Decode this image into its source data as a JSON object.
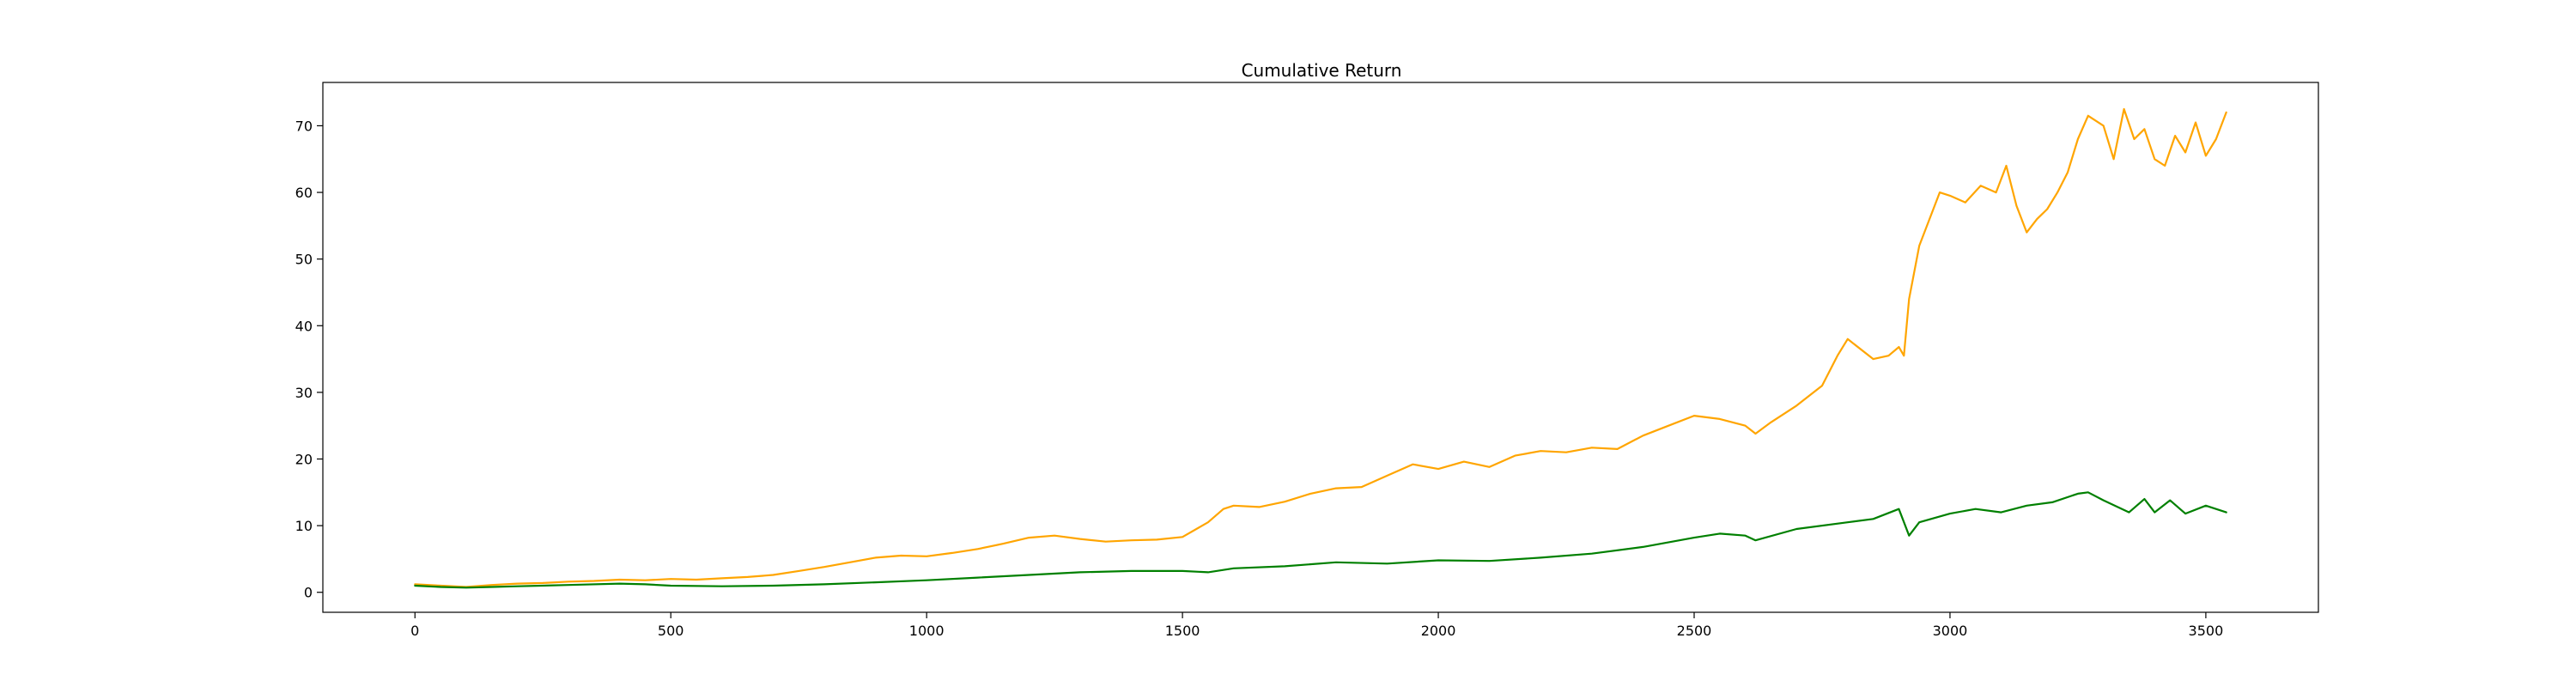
{
  "chart_data": {
    "type": "line",
    "title": "Cumulative Return",
    "xlabel": "",
    "ylabel": "",
    "xlim": [
      -180,
      3720
    ],
    "ylim": [
      -3,
      76.5
    ],
    "x_ticks": [
      0,
      500,
      1000,
      1500,
      2000,
      2500,
      3000,
      3500
    ],
    "y_ticks": [
      0,
      10,
      20,
      30,
      40,
      50,
      60,
      70
    ],
    "grid": false,
    "legend": "none",
    "series": [
      {
        "color": "#ffa500",
        "x": [
          0,
          50,
          100,
          150,
          200,
          250,
          300,
          350,
          400,
          450,
          500,
          550,
          600,
          650,
          700,
          750,
          800,
          850,
          900,
          950,
          1000,
          1050,
          1100,
          1150,
          1200,
          1250,
          1300,
          1350,
          1400,
          1450,
          1500,
          1550,
          1580,
          1600,
          1650,
          1700,
          1750,
          1800,
          1850,
          1900,
          1950,
          2000,
          2050,
          2100,
          2150,
          2200,
          2250,
          2300,
          2350,
          2400,
          2450,
          2500,
          2550,
          2600,
          2620,
          2650,
          2700,
          2750,
          2780,
          2800,
          2850,
          2880,
          2900,
          2910,
          2920,
          2940,
          2960,
          2980,
          3000,
          3030,
          3060,
          3090,
          3110,
          3130,
          3150,
          3170,
          3190,
          3210,
          3230,
          3250,
          3270,
          3300,
          3320,
          3340,
          3360,
          3380,
          3400,
          3420,
          3440,
          3460,
          3480,
          3500,
          3520,
          3540
        ],
        "y": [
          1.2,
          1.0,
          0.8,
          1.1,
          1.3,
          1.4,
          1.6,
          1.7,
          1.9,
          1.8,
          2.0,
          1.9,
          2.1,
          2.3,
          2.6,
          3.2,
          3.8,
          4.5,
          5.2,
          5.5,
          5.4,
          5.9,
          6.5,
          7.3,
          8.2,
          8.5,
          8.0,
          7.6,
          7.8,
          7.9,
          8.3,
          10.5,
          12.5,
          13.0,
          12.8,
          13.6,
          14.8,
          15.6,
          15.8,
          17.5,
          19.2,
          18.5,
          19.6,
          18.8,
          20.5,
          21.2,
          21.0,
          21.7,
          21.5,
          23.5,
          25.0,
          26.5,
          26.0,
          25.0,
          23.8,
          25.5,
          28.0,
          31.0,
          35.5,
          38.0,
          35.0,
          35.5,
          36.8,
          35.5,
          44.0,
          52.0,
          56.0,
          60.0,
          59.5,
          58.5,
          61.0,
          60.0,
          64.0,
          58.0,
          54.0,
          56.0,
          57.5,
          60.0,
          63.0,
          68.0,
          71.5,
          70.0,
          65.0,
          72.5,
          68.0,
          69.5,
          65.0,
          64.0,
          68.5,
          66.0,
          70.5,
          65.5,
          68.0,
          72.0
        ]
      },
      {
        "color": "#008000",
        "x": [
          0,
          50,
          100,
          150,
          200,
          300,
          400,
          450,
          500,
          600,
          700,
          800,
          900,
          1000,
          1100,
          1200,
          1300,
          1400,
          1500,
          1550,
          1600,
          1700,
          1800,
          1900,
          2000,
          2100,
          2200,
          2300,
          2400,
          2500,
          2550,
          2600,
          2620,
          2700,
          2800,
          2850,
          2900,
          2920,
          2940,
          3000,
          3050,
          3100,
          3150,
          3200,
          3250,
          3270,
          3300,
          3350,
          3380,
          3400,
          3430,
          3460,
          3500,
          3540
        ],
        "y": [
          1.0,
          0.8,
          0.7,
          0.8,
          0.9,
          1.1,
          1.3,
          1.2,
          1.0,
          0.9,
          1.0,
          1.2,
          1.5,
          1.8,
          2.2,
          2.6,
          3.0,
          3.2,
          3.2,
          3.0,
          3.6,
          3.9,
          4.5,
          4.3,
          4.8,
          4.7,
          5.2,
          5.8,
          6.8,
          8.2,
          8.8,
          8.5,
          7.8,
          9.5,
          10.5,
          11.0,
          12.5,
          8.5,
          10.5,
          11.8,
          12.5,
          12.0,
          13.0,
          13.5,
          14.8,
          15.0,
          13.8,
          12.0,
          14.0,
          12.0,
          13.8,
          11.8,
          13.0,
          12.0
        ]
      }
    ]
  }
}
